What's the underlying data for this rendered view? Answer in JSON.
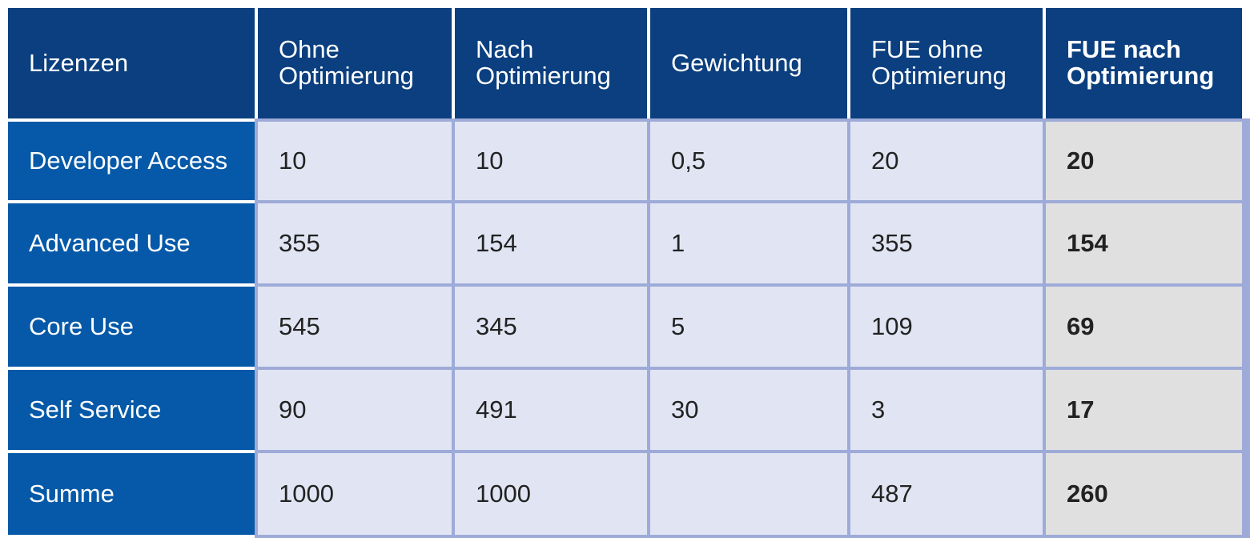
{
  "table": {
    "header": [
      "Lizenzen",
      "Ohne Optimierung",
      "Nach Optimierung",
      "Gewichtung",
      "FUE ohne Optimierung",
      "FUE nach Optimierung"
    ],
    "rows": [
      [
        "Developer Access",
        "10",
        "10",
        "0,5",
        "20",
        "20"
      ],
      [
        "Advanced Use",
        "355",
        "154",
        "1",
        "355",
        "154"
      ],
      [
        "Core Use",
        "545",
        "345",
        "5",
        "109",
        "69"
      ],
      [
        "Self Service",
        "90",
        "491",
        "30",
        "3",
        "17"
      ],
      [
        "Summe",
        "1000",
        "1000",
        null,
        "487",
        "260"
      ]
    ]
  }
}
